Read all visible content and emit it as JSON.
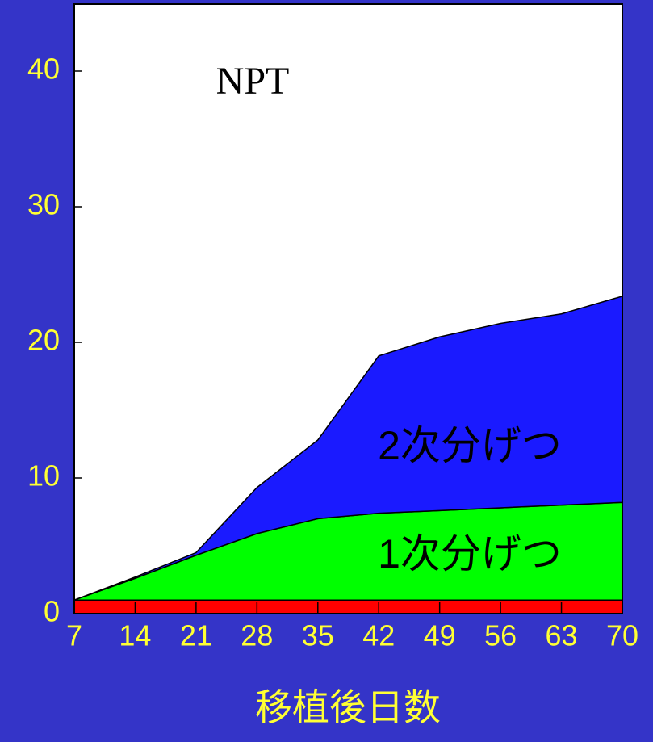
{
  "chart_data": {
    "type": "stacked_area",
    "x": [
      7,
      14,
      21,
      28,
      35,
      42,
      49,
      56,
      63,
      70
    ],
    "xlim": [
      7,
      70
    ],
    "xticks": [
      7,
      14,
      21,
      28,
      35,
      42,
      49,
      56,
      63,
      70
    ],
    "ylim": [
      0,
      45
    ],
    "yticks": [
      0,
      10,
      20,
      30,
      40
    ],
    "x_label": "移植後日数",
    "annotations": [
      "NPT"
    ],
    "series": [
      {
        "color": "#ff0000",
        "values": [
          1,
          1,
          1,
          1,
          1,
          1,
          1,
          1,
          1,
          1
        ]
      },
      {
        "name": "1次分げつ",
        "color": "#00ff00",
        "values": [
          0,
          1.6,
          3.3,
          4.9,
          6.0,
          6.4,
          6.6,
          6.8,
          7.0,
          7.2
        ]
      },
      {
        "name": "2次分げつ",
        "color": "#1a1aff",
        "values": [
          0,
          0.1,
          0.2,
          3.4,
          5.8,
          11.6,
          12.8,
          13.6,
          14.1,
          15.2
        ]
      }
    ]
  }
}
